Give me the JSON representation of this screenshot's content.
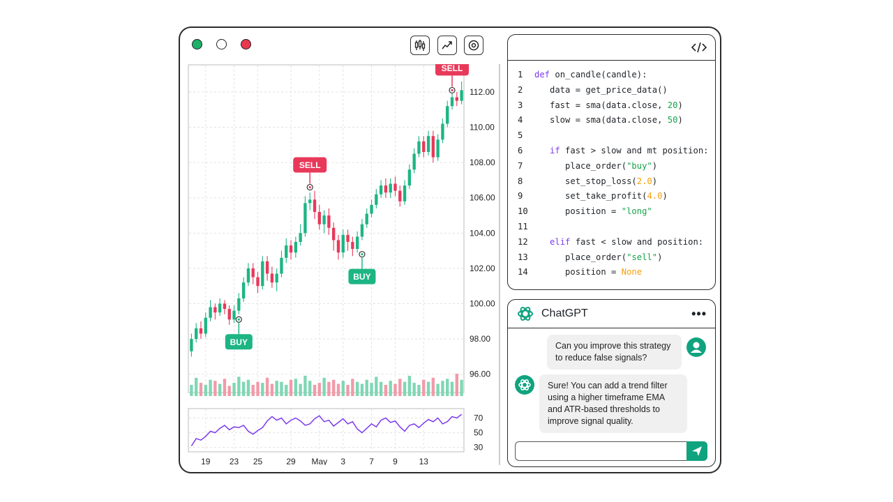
{
  "window": {
    "traffic_lights": [
      "#1db16a",
      "#ffffff",
      "#e8394f"
    ],
    "toolbar": [
      {
        "name": "candlestick-chart-icon"
      },
      {
        "name": "line-chart-icon"
      },
      {
        "name": "settings-icon"
      }
    ]
  },
  "chart": {
    "price_ticks": [
      "112.00",
      "110.00",
      "108.00",
      "106.00",
      "104.00",
      "102.00",
      "100.00",
      "98.00",
      "96.00"
    ],
    "osc_ticks": [
      "70",
      "50",
      "30"
    ],
    "x_ticks": [
      "19",
      "23",
      "25",
      "29",
      "May",
      "3",
      "7",
      "9",
      "13"
    ],
    "markers": [
      {
        "label": "BUY",
        "color": "#1db583"
      },
      {
        "label": "SELL",
        "color": "#e8395a"
      },
      {
        "label": "BUY",
        "color": "#1db583"
      },
      {
        "label": "SELL",
        "color": "#e8395a"
      }
    ],
    "up_color": "#1db583",
    "down_color": "#e8395a",
    "line_color": "#7c3aed"
  },
  "chart_data": {
    "type": "candlestick",
    "ylim": [
      95,
      113.5
    ],
    "candles": [
      [
        97.3,
        98.0,
        98.3,
        97.0
      ],
      [
        98.0,
        98.6,
        98.9,
        97.8
      ],
      [
        98.6,
        98.3,
        99.0,
        98.0
      ],
      [
        98.3,
        99.2,
        99.5,
        98.1
      ],
      [
        99.2,
        99.8,
        100.2,
        99.0
      ],
      [
        99.8,
        99.5,
        100.0,
        99.1
      ],
      [
        99.5,
        100.0,
        100.3,
        99.3
      ],
      [
        100.0,
        99.7,
        100.2,
        99.4
      ],
      [
        99.7,
        99.1,
        99.9,
        98.8
      ],
      [
        99.1,
        99.6,
        99.9,
        98.9
      ],
      [
        99.6,
        100.3,
        100.6,
        99.4
      ],
      [
        100.3,
        101.2,
        101.5,
        100.1
      ],
      [
        101.2,
        102.0,
        102.3,
        101.0
      ],
      [
        102.0,
        101.5,
        102.3,
        101.1
      ],
      [
        101.5,
        101.0,
        101.8,
        100.6
      ],
      [
        101.0,
        102.4,
        102.7,
        100.8
      ],
      [
        102.4,
        101.7,
        102.7,
        101.3
      ],
      [
        101.7,
        101.2,
        102.1,
        100.9
      ],
      [
        101.2,
        101.7,
        102.0,
        100.7
      ],
      [
        101.7,
        102.6,
        103.0,
        101.5
      ],
      [
        102.6,
        103.3,
        103.7,
        102.3
      ],
      [
        103.3,
        102.9,
        103.6,
        102.5
      ],
      [
        102.9,
        103.5,
        103.8,
        102.6
      ],
      [
        103.5,
        104.0,
        104.5,
        103.3
      ],
      [
        104.0,
        105.7,
        106.1,
        103.8
      ],
      [
        105.7,
        105.9,
        106.3,
        105.3
      ],
      [
        105.9,
        105.2,
        106.4,
        104.8
      ],
      [
        105.2,
        104.5,
        105.6,
        104.2
      ],
      [
        104.5,
        105.0,
        105.3,
        104.0
      ],
      [
        105.0,
        104.3,
        105.4,
        103.9
      ],
      [
        104.3,
        103.6,
        104.6,
        103.0
      ],
      [
        103.6,
        102.9,
        103.9,
        102.5
      ],
      [
        102.9,
        103.9,
        104.2,
        102.6
      ],
      [
        103.9,
        103.5,
        104.2,
        103.0
      ],
      [
        103.5,
        103.1,
        103.8,
        102.7
      ],
      [
        103.1,
        103.8,
        104.1,
        102.9
      ],
      [
        103.8,
        104.5,
        104.8,
        103.6
      ],
      [
        104.5,
        105.1,
        105.4,
        104.3
      ],
      [
        105.1,
        105.6,
        105.9,
        104.9
      ],
      [
        105.6,
        106.2,
        106.5,
        105.4
      ],
      [
        106.2,
        106.7,
        107.0,
        106.0
      ],
      [
        106.7,
        106.3,
        107.1,
        106.0
      ],
      [
        106.3,
        106.8,
        107.1,
        106.0
      ],
      [
        106.8,
        106.4,
        107.2,
        106.1
      ],
      [
        106.4,
        105.8,
        106.7,
        105.5
      ],
      [
        105.8,
        106.7,
        107.0,
        105.6
      ],
      [
        106.7,
        107.6,
        107.9,
        106.5
      ],
      [
        107.6,
        108.5,
        108.8,
        107.4
      ],
      [
        108.5,
        109.2,
        109.5,
        108.3
      ],
      [
        109.2,
        108.6,
        109.5,
        108.3
      ],
      [
        108.6,
        109.5,
        109.8,
        108.4
      ],
      [
        109.5,
        108.3,
        109.8,
        108.0
      ],
      [
        108.3,
        109.3,
        109.6,
        108.1
      ],
      [
        109.3,
        110.2,
        110.5,
        109.1
      ],
      [
        110.2,
        111.2,
        111.5,
        110.0
      ],
      [
        111.2,
        111.7,
        112.0,
        111.0
      ],
      [
        111.7,
        111.5,
        112.0,
        111.2
      ],
      [
        111.5,
        112.1,
        112.6,
        111.3
      ]
    ],
    "volume": [
      0.55,
      0.9,
      0.65,
      0.55,
      0.8,
      0.75,
      0.6,
      0.85,
      0.5,
      0.65,
      0.95,
      0.7,
      0.8,
      0.55,
      0.7,
      0.65,
      0.9,
      0.6,
      0.75,
      0.7,
      0.55,
      0.8,
      0.85,
      0.6,
      1.0,
      0.75,
      0.55,
      0.65,
      0.9,
      0.7,
      0.8,
      0.6,
      0.75,
      0.55,
      0.85,
      0.7,
      0.6,
      0.8,
      0.65,
      0.95,
      0.7,
      0.55,
      0.75,
      0.6,
      0.85,
      0.7,
      1.0,
      0.65,
      0.55,
      0.8,
      0.7,
      0.9,
      0.6,
      0.75,
      0.85,
      0.7,
      1.1,
      0.8
    ],
    "osc": [
      32,
      42,
      40,
      45,
      52,
      50,
      56,
      60,
      54,
      58,
      57,
      60,
      52,
      48,
      53,
      57,
      66,
      72,
      67,
      70,
      62,
      67,
      70,
      66,
      60,
      62,
      69,
      73,
      65,
      67,
      59,
      64,
      69,
      62,
      65,
      55,
      50,
      56,
      62,
      58,
      67,
      70,
      64,
      66,
      58,
      52,
      60,
      62,
      57,
      63,
      68,
      65,
      70,
      62,
      65,
      72,
      70,
      75
    ],
    "osc_ylim": [
      25,
      80
    ]
  },
  "code": {
    "header_icon": "code-icon",
    "lines": [
      {
        "n": "1",
        "tokens": [
          {
            "t": "def",
            "c": "kw"
          },
          {
            "t": " on_candle(candle):",
            "c": "nm"
          }
        ]
      },
      {
        "n": "2",
        "tokens": [
          {
            "t": "   data = get_price_data()",
            "c": "nm"
          }
        ]
      },
      {
        "n": "3",
        "tokens": [
          {
            "t": "   fast = sma(data.close, ",
            "c": "nm"
          },
          {
            "t": "20",
            "c": "str"
          },
          {
            "t": ")",
            "c": "nm"
          }
        ]
      },
      {
        "n": "4",
        "tokens": [
          {
            "t": "   slow = sma(data.close, ",
            "c": "nm"
          },
          {
            "t": "50",
            "c": "str"
          },
          {
            "t": ")",
            "c": "nm"
          }
        ]
      },
      {
        "n": "5",
        "tokens": []
      },
      {
        "n": "6",
        "tokens": [
          {
            "t": "   ",
            "c": "nm"
          },
          {
            "t": "if",
            "c": "kw"
          },
          {
            "t": " fast > slow and mt position:",
            "c": "nm"
          }
        ]
      },
      {
        "n": "7",
        "tokens": [
          {
            "t": "      place_order(",
            "c": "nm"
          },
          {
            "t": "\"buy\"",
            "c": "str"
          },
          {
            "t": ")",
            "c": "nm"
          }
        ]
      },
      {
        "n": "8",
        "tokens": [
          {
            "t": "      set_stop_loss(",
            "c": "nm"
          },
          {
            "t": "2.0",
            "c": "num"
          },
          {
            "t": ")",
            "c": "nm"
          }
        ]
      },
      {
        "n": "9",
        "tokens": [
          {
            "t": "      set_take_profit(",
            "c": "nm"
          },
          {
            "t": "4.0",
            "c": "num"
          },
          {
            "t": ")",
            "c": "nm"
          }
        ]
      },
      {
        "n": "10",
        "tokens": [
          {
            "t": "      position = ",
            "c": "nm"
          },
          {
            "t": "\"long\"",
            "c": "str"
          }
        ]
      },
      {
        "n": "11",
        "tokens": []
      },
      {
        "n": "12",
        "tokens": [
          {
            "t": "   ",
            "c": "nm"
          },
          {
            "t": "elif",
            "c": "kw"
          },
          {
            "t": " fast < slow and position:",
            "c": "nm"
          }
        ]
      },
      {
        "n": "13",
        "tokens": [
          {
            "t": "      place_order(",
            "c": "nm"
          },
          {
            "t": "\"sell\"",
            "c": "str"
          },
          {
            "t": ")",
            "c": "nm"
          }
        ]
      },
      {
        "n": "14",
        "tokens": [
          {
            "t": "      position = ",
            "c": "nm"
          },
          {
            "t": "None",
            "c": "num"
          }
        ]
      }
    ]
  },
  "chat": {
    "title": "ChatGPT",
    "menu_label": "•••",
    "user_message": "Can you improve this strategy to reduce false signals?",
    "assistant_message": "Sure! You can add a trend filter using a higher timeframe EMA and ATR-based thresholds to improve signal quality.",
    "input_value": "",
    "brand_color": "#10a37f"
  }
}
